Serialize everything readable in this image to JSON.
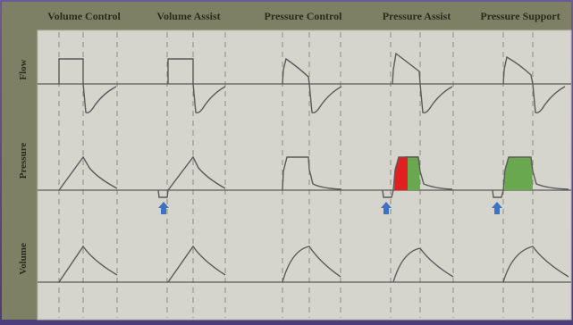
{
  "modes": [
    {
      "label": "Volume Control"
    },
    {
      "label": "Volume Assist"
    },
    {
      "label": "Pressure Control"
    },
    {
      "label": "Pressure Assist"
    },
    {
      "label": "Pressure Support"
    }
  ],
  "rows": [
    {
      "label": "Flow"
    },
    {
      "label": "Pressure"
    },
    {
      "label": "Volume"
    }
  ],
  "trigger_icon": "arrow-up-icon",
  "colors": {
    "header_band": "#7d8064",
    "row_band": "#7d8064",
    "panel": "#d5d5cd",
    "trace": "#5a5a5a",
    "trigger_arrow": "#3f71c2",
    "mandatory_fill": "#e02020",
    "spontaneous_fill": "#6aa84f",
    "frame": "#5b4a86"
  }
}
